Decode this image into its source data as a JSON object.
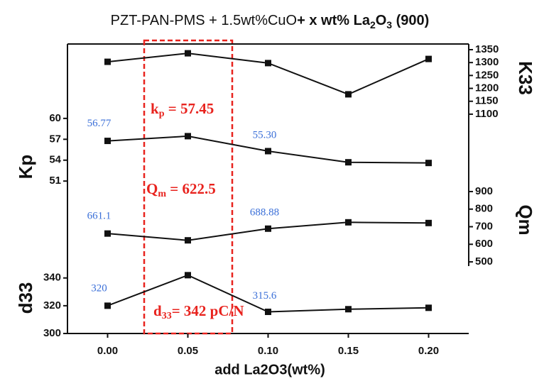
{
  "chart_data": [
    {
      "type": "line",
      "title_parts": [
        "PZT-PAN-PMS + 1.5wt%CuO",
        "+ x wt% La",
        "2",
        "O",
        "3",
        " (900)"
      ],
      "ylabel": "K33",
      "yaxis": "right",
      "x": [
        0,
        0.05,
        0.1,
        0.15,
        0.2
      ],
      "xlim": [
        -0.025,
        0.225
      ],
      "values": [
        1303,
        1336,
        1298,
        1177,
        1314
      ],
      "color": "#111111",
      "ylim": [
        1075,
        1372
      ],
      "yticks": [
        1100,
        1150,
        1200,
        1250,
        1300,
        1350
      ]
    },
    {
      "type": "line",
      "ylabel": "Kp",
      "yaxis": "left",
      "x": [
        0,
        0.05,
        0.1,
        0.15,
        0.2
      ],
      "xlim": [
        -0.025,
        0.225
      ],
      "values": [
        56.77,
        57.45,
        55.3,
        53.7,
        53.6
      ],
      "value_labels": [
        "56.77",
        null,
        "55.30",
        null,
        null
      ],
      "color": "#111111",
      "ylim": [
        50,
        60.7
      ],
      "yticks": [
        51,
        54,
        57,
        60
      ],
      "annotation": {
        "main": "k",
        "sub": "p",
        "rest": " = 57.45"
      }
    },
    {
      "type": "line",
      "ylabel": "Qm",
      "yaxis": "right",
      "x": [
        0,
        0.05,
        0.1,
        0.15,
        0.2
      ],
      "xlim": [
        -0.025,
        0.225
      ],
      "values": [
        661.1,
        622.5,
        688.88,
        725,
        721
      ],
      "value_labels": [
        "661.1",
        null,
        "688.88",
        null,
        null
      ],
      "color": "#111111",
      "ylim": [
        476,
        920
      ],
      "yticks": [
        500,
        600,
        700,
        800,
        900
      ],
      "annotation": {
        "main": "Q",
        "sub": "m",
        "rest": " = 622.5"
      }
    },
    {
      "type": "line",
      "ylabel": "d33",
      "yaxis": "left",
      "x": [
        0,
        0.05,
        0.1,
        0.15,
        0.2
      ],
      "xlim": [
        -0.025,
        0.225
      ],
      "values": [
        320,
        342,
        315.6,
        317.5,
        318.5
      ],
      "value_labels": [
        "320",
        null,
        "315.6",
        null,
        null
      ],
      "color": "#111111",
      "ylim": [
        300,
        346
      ],
      "yticks": [
        300,
        320,
        340
      ],
      "annotation": {
        "main": "d",
        "sub": "33",
        "rest": "= 342 pC/N"
      },
      "xlabel": "add La2O3(wt%)",
      "xticks": [
        {
          "value": 0,
          "label": "0.00"
        },
        0.05,
        {
          "value": 0.1,
          "label": "0.10"
        },
        0.15,
        {
          "value": 0.2,
          "label": "0.20"
        }
      ]
    }
  ]
}
